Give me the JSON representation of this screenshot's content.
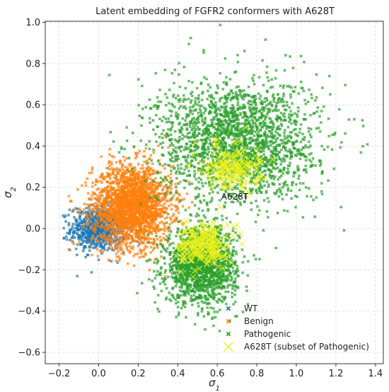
{
  "chart_data": {
    "type": "scatter",
    "title": "Latent embedding of FGFR2 conformers with A628T",
    "xlabel": "σ",
    "xlabel_sub": "1",
    "ylabel": "σ",
    "ylabel_sub": "2",
    "xlim": [
      -0.27,
      1.44
    ],
    "ylim": [
      -0.655,
      1.005
    ],
    "xticks": [
      -0.2,
      0.0,
      0.2,
      0.4,
      0.6,
      0.8,
      1.0,
      1.2,
      1.4
    ],
    "xtick_labels": [
      "−0.2",
      "0.0",
      "0.2",
      "0.4",
      "0.6",
      "0.8",
      "1.0",
      "1.2",
      "1.4"
    ],
    "yticks": [
      -0.6,
      -0.4,
      -0.2,
      0.0,
      0.2,
      0.4,
      0.6,
      0.8,
      1.0
    ],
    "ytick_labels": [
      "−0.6",
      "−0.4",
      "−0.2",
      "0.0",
      "0.2",
      "0.4",
      "0.6",
      "0.8",
      "1.0"
    ],
    "grid": true,
    "legend_position": "bottom-right",
    "annotation": {
      "text": "A628T",
      "x": 0.62,
      "y": 0.14
    },
    "series": [
      {
        "name": "WT",
        "color": "#1f77b4",
        "marker": "x",
        "clusters": [
          {
            "cx": 0.0,
            "cy": 0.0,
            "sx": 0.07,
            "sy": 0.055,
            "n": 700
          }
        ]
      },
      {
        "name": "Benign",
        "color": "#ff7f0e",
        "marker": "x",
        "clusters": [
          {
            "cx": 0.17,
            "cy": 0.11,
            "sx": 0.1,
            "sy": 0.1,
            "n": 2200
          }
        ]
      },
      {
        "name": "Pathogenic",
        "color": "#2ca02c",
        "marker": "x",
        "clusters": [
          {
            "cx": 0.52,
            "cy": -0.18,
            "sx": 0.09,
            "sy": 0.09,
            "n": 1600
          },
          {
            "cx": 0.7,
            "cy": 0.42,
            "sx": 0.2,
            "sy": 0.15,
            "n": 2200
          }
        ]
      },
      {
        "name": "A628T (subset of Pathogenic)",
        "color": "#e8f01a",
        "marker": "x-large",
        "clusters": [
          {
            "cx": 0.53,
            "cy": -0.08,
            "sx": 0.06,
            "sy": 0.05,
            "n": 220
          },
          {
            "cx": 0.68,
            "cy": 0.3,
            "sx": 0.07,
            "sy": 0.06,
            "n": 170
          }
        ]
      }
    ]
  }
}
